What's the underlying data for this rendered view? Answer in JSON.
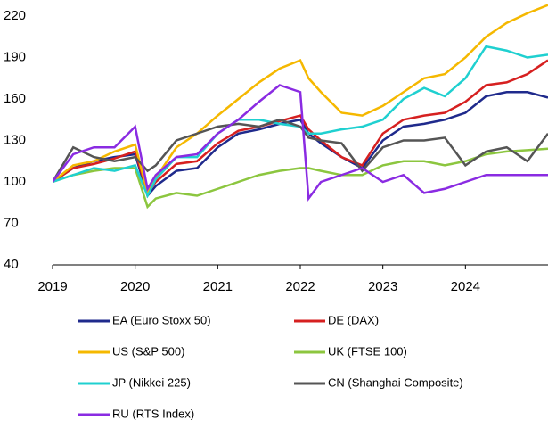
{
  "chart_data": {
    "type": "line",
    "x": [
      2019,
      2019.25,
      2019.5,
      2019.75,
      2020,
      2020.15,
      2020.25,
      2020.5,
      2020.75,
      2021,
      2021.25,
      2021.5,
      2021.75,
      2022,
      2022.1,
      2022.25,
      2022.5,
      2022.75,
      2023,
      2023.25,
      2023.5,
      2023.75,
      2024,
      2024.25,
      2024.5,
      2024.75,
      2025
    ],
    "series": [
      {
        "name": "EA (Euro Stoxx 50)",
        "color": "#1f2a8c",
        "values": [
          100,
          110,
          115,
          118,
          120,
          90,
          97,
          108,
          110,
          125,
          135,
          138,
          142,
          145,
          135,
          128,
          118,
          110,
          130,
          140,
          142,
          145,
          150,
          162,
          165,
          165,
          161
        ]
      },
      {
        "name": "DE (DAX)",
        "color": "#d62020",
        "values": [
          100,
          110,
          113,
          117,
          122,
          92,
          100,
          113,
          115,
          128,
          137,
          140,
          144,
          148,
          138,
          130,
          118,
          112,
          135,
          145,
          148,
          150,
          158,
          170,
          172,
          178,
          188
        ]
      },
      {
        "name": "US (S&P 500)",
        "color": "#f5b800",
        "values": [
          100,
          112,
          115,
          122,
          127,
          92,
          103,
          125,
          135,
          148,
          160,
          172,
          182,
          188,
          175,
          165,
          150,
          148,
          155,
          165,
          175,
          178,
          190,
          205,
          215,
          222,
          228
        ]
      },
      {
        "name": "UK (FTSE 100)",
        "color": "#8cc63f",
        "values": [
          100,
          105,
          108,
          110,
          110,
          82,
          88,
          92,
          90,
          95,
          100,
          105,
          108,
          110,
          110,
          108,
          105,
          105,
          112,
          115,
          115,
          112,
          115,
          120,
          122,
          123,
          124
        ]
      },
      {
        "name": "JP (Nikkei 225)",
        "color": "#1fd0d0",
        "values": [
          100,
          105,
          110,
          108,
          112,
          90,
          102,
          118,
          118,
          135,
          145,
          145,
          142,
          140,
          135,
          135,
          138,
          140,
          145,
          160,
          168,
          162,
          175,
          198,
          195,
          190,
          192
        ]
      },
      {
        "name": "CN (Shanghai Composite)",
        "color": "#555555",
        "values": [
          100,
          125,
          118,
          115,
          118,
          108,
          112,
          130,
          135,
          140,
          142,
          140,
          145,
          140,
          132,
          130,
          128,
          108,
          125,
          130,
          130,
          132,
          112,
          122,
          125,
          115,
          135
        ]
      },
      {
        "name": "RU (RTS Index)",
        "color": "#8a2be2",
        "values": [
          100,
          120,
          125,
          125,
          140,
          95,
          105,
          118,
          120,
          135,
          145,
          158,
          170,
          165,
          88,
          100,
          105,
          110,
          100,
          105,
          92,
          95,
          100,
          105,
          105,
          105,
          105
        ]
      }
    ],
    "xlim": [
      2019,
      2025
    ],
    "xticks": [
      2019,
      2020,
      2021,
      2022,
      2023,
      2024
    ],
    "ylim": [
      40,
      230
    ],
    "yticks": [
      40,
      70,
      100,
      130,
      160,
      190,
      220
    ],
    "grid": false
  }
}
